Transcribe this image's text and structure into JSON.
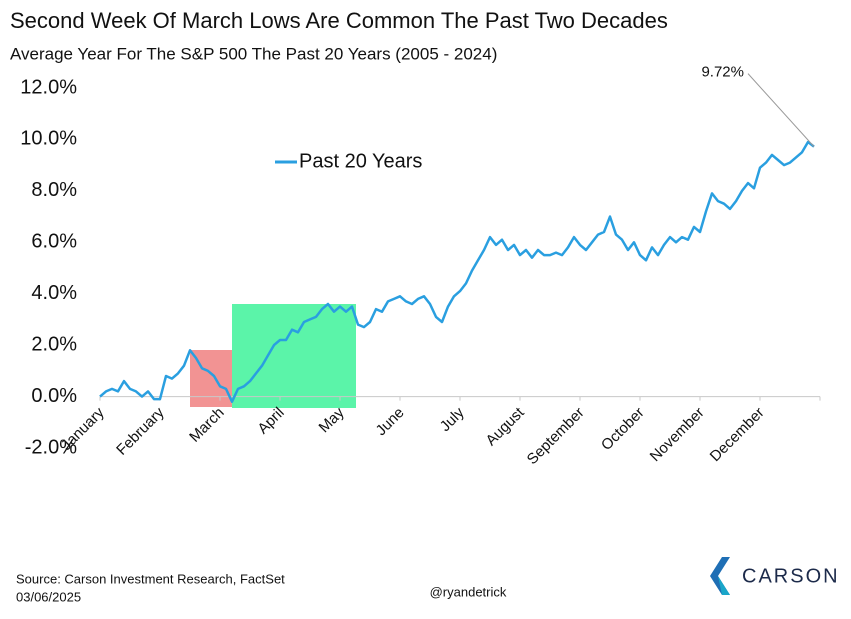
{
  "chart_data": {
    "type": "line",
    "title": "Second Week Of March Lows Are Common The Past Two Decades",
    "subtitle": "Average Year For The S&P 500 The Past 20 Years (2005 - 2024)",
    "categories": [
      "January",
      null,
      null,
      null,
      null,
      null,
      null,
      null,
      null,
      null,
      "February",
      null,
      null,
      null,
      null,
      null,
      null,
      null,
      null,
      null,
      "March",
      null,
      null,
      null,
      null,
      null,
      null,
      null,
      null,
      null,
      "April",
      null,
      null,
      null,
      null,
      null,
      null,
      null,
      null,
      null,
      "May",
      null,
      null,
      null,
      null,
      null,
      null,
      null,
      null,
      null,
      "June",
      null,
      null,
      null,
      null,
      null,
      null,
      null,
      null,
      null,
      "July",
      null,
      null,
      null,
      null,
      null,
      null,
      null,
      null,
      null,
      "August",
      null,
      null,
      null,
      null,
      null,
      null,
      null,
      null,
      null,
      "September",
      null,
      null,
      null,
      null,
      null,
      null,
      null,
      null,
      null,
      "October",
      null,
      null,
      null,
      null,
      null,
      null,
      null,
      null,
      null,
      "November",
      null,
      null,
      null,
      null,
      null,
      null,
      null,
      null,
      null,
      "December",
      null,
      null,
      null,
      null,
      null,
      null,
      null,
      null,
      null
    ],
    "series": [
      {
        "name": "Past 20 Years",
        "color": "#2a9fe0",
        "values": [
          0.0,
          0.2,
          0.3,
          0.2,
          0.6,
          0.3,
          0.2,
          0.0,
          0.2,
          -0.1,
          -0.1,
          0.8,
          0.7,
          0.9,
          1.2,
          1.8,
          1.5,
          1.1,
          1.0,
          0.8,
          0.4,
          0.3,
          -0.2,
          0.3,
          0.4,
          0.6,
          0.9,
          1.2,
          1.6,
          2.0,
          2.2,
          2.2,
          2.6,
          2.5,
          2.9,
          3.0,
          3.1,
          3.4,
          3.6,
          3.3,
          3.5,
          3.3,
          3.5,
          2.8,
          2.7,
          2.9,
          3.4,
          3.3,
          3.7,
          3.8,
          3.9,
          3.7,
          3.6,
          3.8,
          3.9,
          3.6,
          3.1,
          2.9,
          3.5,
          3.9,
          4.1,
          4.4,
          4.9,
          5.3,
          5.7,
          6.2,
          5.9,
          6.1,
          5.7,
          5.9,
          5.5,
          5.7,
          5.4,
          5.7,
          5.5,
          5.5,
          5.6,
          5.5,
          5.8,
          6.2,
          5.9,
          5.7,
          6.0,
          6.3,
          6.4,
          7.0,
          6.3,
          6.1,
          5.7,
          6.0,
          5.5,
          5.3,
          5.8,
          5.5,
          5.9,
          6.2,
          6.0,
          6.2,
          6.1,
          6.6,
          6.4,
          7.2,
          7.9,
          7.6,
          7.5,
          7.3,
          7.6,
          8.0,
          8.3,
          8.1,
          8.9,
          9.1,
          9.4,
          9.2,
          9.0,
          9.1,
          9.3,
          9.5,
          9.9,
          9.72
        ],
        "value_labels": [
          null,
          null,
          null,
          null,
          null,
          null,
          null,
          null,
          null,
          null,
          null,
          null,
          null,
          null,
          null,
          null,
          null,
          null,
          null,
          null,
          null,
          null,
          null,
          null,
          null,
          null,
          null,
          null,
          null,
          null,
          null,
          null,
          null,
          null,
          null,
          null,
          null,
          null,
          null,
          null,
          null,
          null,
          null,
          null,
          null,
          null,
          null,
          null,
          null,
          null,
          null,
          null,
          null,
          null,
          null,
          null,
          null,
          null,
          null,
          null,
          null,
          null,
          null,
          null,
          null,
          null,
          null,
          null,
          null,
          null,
          null,
          null,
          null,
          null,
          null,
          null,
          null,
          null,
          null,
          null,
          null,
          null,
          null,
          null,
          null,
          null,
          null,
          null,
          null,
          null,
          null,
          null,
          null,
          null,
          null,
          null,
          null,
          null,
          null,
          null,
          null,
          null,
          null,
          null,
          null,
          null,
          null,
          null,
          null,
          null,
          null,
          null,
          null,
          null,
          null,
          null,
          null,
          null,
          null,
          "9.72%"
        ]
      }
    ],
    "ylim": [
      -2,
      12
    ],
    "yticks": [
      {
        "value": -2,
        "label": "-2.0%"
      },
      {
        "value": 0,
        "label": "0.0%"
      },
      {
        "value": 2,
        "label": "2.0%"
      },
      {
        "value": 4,
        "label": "4.0%"
      },
      {
        "value": 6,
        "label": "6.0%"
      },
      {
        "value": 8,
        "label": "8.0%"
      },
      {
        "value": 10,
        "label": "10.0%"
      },
      {
        "value": 12,
        "label": "12.0%"
      }
    ],
    "grid": false,
    "legend": "upper left",
    "source": "Source: Carson Investment Research, FactSet",
    "date": "03/06/2025",
    "credit": "@ryandetrick",
    "logo": "CARSON"
  }
}
